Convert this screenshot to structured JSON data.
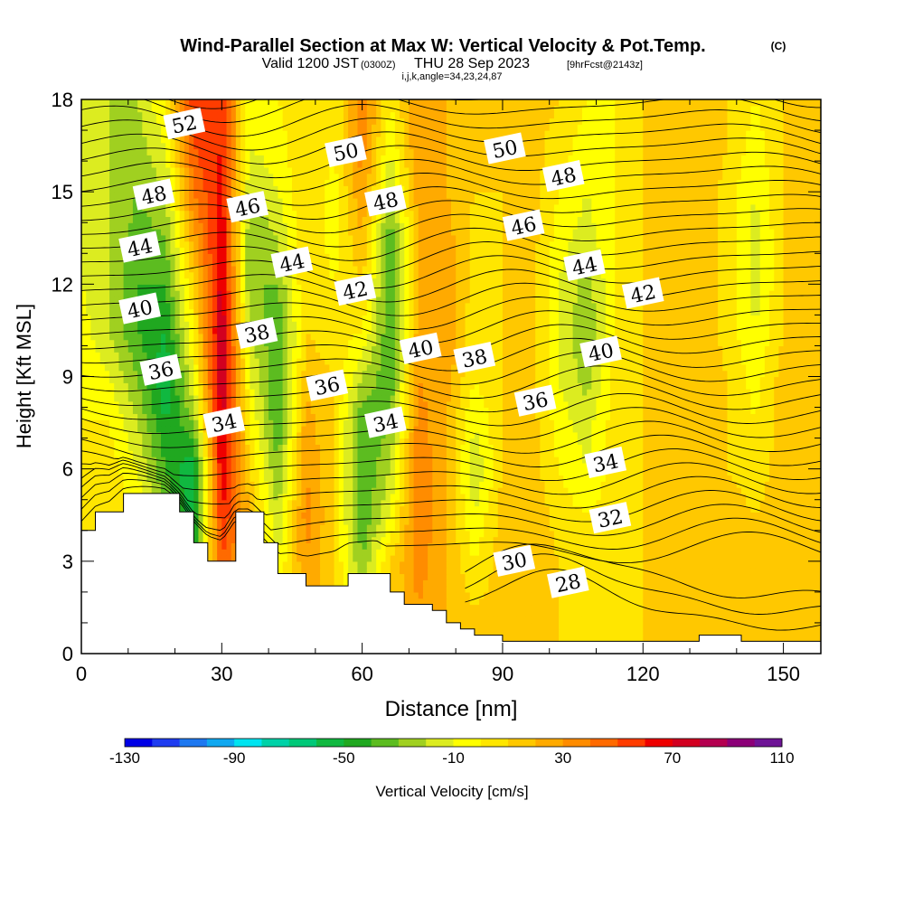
{
  "title": {
    "main": "Wind-Parallel Section at Max W: Vertical Velocity & Pot.Temp.",
    "copyright": "(C)",
    "valid_prefix": "Valid 1200 JST",
    "utc": "(0300Z)",
    "valid_date": "THU 28 Sep 2023",
    "forecast": "[9hrFcst@2143z]",
    "indices": "i,j,k,angle=34,23,24,87"
  },
  "chart_data": {
    "type": "heatmap",
    "xlabel": "Distance [nm]",
    "ylabel": "Height [Kft MSL]",
    "xlim": [
      0,
      158
    ],
    "ylim": [
      0,
      18
    ],
    "x_ticks": [
      0,
      30,
      60,
      90,
      120,
      150
    ],
    "y_ticks": [
      0,
      3,
      6,
      9,
      12,
      15,
      18
    ],
    "colorbar": {
      "label": "Vertical Velocity [cm/s]",
      "min": -130,
      "max": 110,
      "step": 10,
      "tick_labels": [
        "-130",
        "-90",
        "-50",
        "-10",
        "30",
        "70",
        "110"
      ],
      "tick_values": [
        -130,
        -90,
        -50,
        -10,
        30,
        70,
        110
      ],
      "colors": [
        "#0000e6",
        "#1f3cf0",
        "#1e78f0",
        "#10a8f0",
        "#00e4f0",
        "#00d2a8",
        "#00c878",
        "#10b840",
        "#20a820",
        "#5cbc20",
        "#a0d020",
        "#dcec20",
        "#ffff00",
        "#ffe600",
        "#ffc800",
        "#ffaa00",
        "#ff8c00",
        "#ff6a00",
        "#ff3c00",
        "#ee0000",
        "#d20020",
        "#b40050",
        "#8c0078",
        "#6e1496"
      ]
    },
    "vertical_velocity_field": {
      "x": [
        0,
        6,
        12,
        18,
        24,
        30,
        36,
        42,
        48,
        54,
        60,
        66,
        72,
        78,
        84,
        90,
        96,
        102,
        108,
        114,
        120,
        126,
        132,
        138,
        144,
        150,
        158
      ],
      "y": [
        0,
        1.5,
        3,
        4.5,
        6,
        7.5,
        9,
        10.5,
        12,
        13.5,
        15,
        16.5,
        18
      ],
      "values": [
        [
          5,
          10,
          10,
          5,
          10,
          40,
          10,
          0,
          20,
          10,
          0,
          10,
          25,
          20,
          10,
          15,
          20,
          10,
          0,
          5,
          10,
          15,
          20,
          15,
          10,
          15,
          10
        ],
        [
          5,
          10,
          10,
          0,
          -20,
          40,
          20,
          0,
          25,
          10,
          -20,
          10,
          30,
          20,
          10,
          15,
          20,
          10,
          0,
          5,
          10,
          15,
          20,
          15,
          10,
          15,
          10
        ],
        [
          5,
          10,
          5,
          -20,
          -40,
          50,
          20,
          -10,
          30,
          10,
          -30,
          10,
          35,
          20,
          0,
          15,
          20,
          10,
          0,
          5,
          10,
          15,
          20,
          15,
          10,
          15,
          10
        ],
        [
          0,
          10,
          0,
          -30,
          -60,
          60,
          20,
          -20,
          35,
          10,
          -40,
          -10,
          40,
          20,
          -10,
          15,
          20,
          5,
          0,
          5,
          10,
          15,
          20,
          15,
          10,
          15,
          10
        ],
        [
          0,
          5,
          -10,
          -40,
          -60,
          70,
          10,
          -30,
          30,
          10,
          -40,
          -20,
          40,
          20,
          -20,
          10,
          15,
          0,
          -10,
          5,
          10,
          15,
          20,
          10,
          5,
          15,
          10
        ],
        [
          0,
          0,
          -20,
          -50,
          -30,
          75,
          0,
          -40,
          25,
          10,
          -40,
          -30,
          35,
          20,
          -10,
          10,
          15,
          -5,
          -15,
          5,
          10,
          15,
          20,
          10,
          0,
          15,
          10
        ],
        [
          0,
          -10,
          -30,
          -60,
          -10,
          80,
          -10,
          -40,
          15,
          10,
          -20,
          -40,
          30,
          25,
          0,
          10,
          15,
          -10,
          -25,
          5,
          10,
          15,
          20,
          10,
          -5,
          15,
          10
        ],
        [
          -5,
          -20,
          -40,
          -50,
          0,
          80,
          -20,
          -40,
          10,
          5,
          0,
          -40,
          25,
          30,
          0,
          10,
          15,
          -10,
          -30,
          0,
          10,
          15,
          20,
          5,
          -10,
          10,
          10
        ],
        [
          -10,
          -20,
          -40,
          -40,
          10,
          75,
          -30,
          -30,
          10,
          0,
          10,
          -40,
          20,
          30,
          5,
          10,
          15,
          -10,
          -25,
          0,
          10,
          15,
          20,
          5,
          -15,
          10,
          10
        ],
        [
          -10,
          -20,
          -35,
          -30,
          25,
          70,
          -30,
          -20,
          10,
          -5,
          20,
          -40,
          20,
          25,
          5,
          10,
          15,
          -5,
          -15,
          0,
          10,
          15,
          20,
          5,
          -15,
          10,
          10
        ],
        [
          -10,
          -20,
          -30,
          -20,
          40,
          65,
          -20,
          -10,
          10,
          -5,
          30,
          -20,
          25,
          20,
          10,
          10,
          15,
          0,
          -10,
          0,
          10,
          15,
          20,
          5,
          -10,
          10,
          10
        ],
        [
          -10,
          -20,
          -25,
          -10,
          50,
          60,
          -10,
          -5,
          10,
          0,
          35,
          -10,
          30,
          20,
          10,
          10,
          15,
          5,
          -5,
          0,
          10,
          15,
          20,
          10,
          -5,
          10,
          10
        ],
        [
          -10,
          -20,
          -20,
          0,
          55,
          55,
          -5,
          0,
          10,
          0,
          40,
          0,
          30,
          20,
          10,
          10,
          15,
          10,
          0,
          0,
          10,
          15,
          20,
          10,
          0,
          10,
          10
        ]
      ]
    },
    "terrain": {
      "x": [
        0,
        3,
        6,
        9,
        12,
        15,
        18,
        21,
        24,
        27,
        30,
        33,
        36,
        39,
        42,
        45,
        48,
        51,
        54,
        57,
        60,
        63,
        66,
        69,
        72,
        75,
        78,
        81,
        84,
        87,
        90,
        93,
        96,
        99,
        102,
        105,
        108,
        111,
        114,
        117,
        120,
        123,
        126,
        129,
        132,
        135,
        138,
        141,
        144,
        147,
        150,
        153,
        155,
        158
      ],
      "height": [
        4,
        4.6,
        4.6,
        5.2,
        5.2,
        5.2,
        5.2,
        4.6,
        3.6,
        3.0,
        3.0,
        4.6,
        4.6,
        3.6,
        2.6,
        2.6,
        2.2,
        2.2,
        2.2,
        2.6,
        2.6,
        2.6,
        2.0,
        1.6,
        1.6,
        1.4,
        1.0,
        0.8,
        0.6,
        0.6,
        0.4,
        0.4,
        0.4,
        0.4,
        0.4,
        0.4,
        0.4,
        0.4,
        0.4,
        0.4,
        0.4,
        0.4,
        0.4,
        0.4,
        0.6,
        0.6,
        0.6,
        0.4,
        0.4,
        0.4,
        0.4,
        0.4,
        0.4,
        0.4
      ]
    },
    "potential_temperature_contours": {
      "interval": 1,
      "labeled": [
        {
          "value": 52,
          "text": "52",
          "x": 22,
          "y": 17.2
        },
        {
          "value": 48,
          "text": "48",
          "x": 15.5,
          "y": 14.9
        },
        {
          "value": 44,
          "text": "44",
          "x": 12.5,
          "y": 13.2
        },
        {
          "value": 40,
          "text": "40",
          "x": 12.5,
          "y": 11.2
        },
        {
          "value": 36,
          "text": "36",
          "x": 17,
          "y": 9.2
        },
        {
          "value": 46,
          "text": "46",
          "x": 35.5,
          "y": 14.5
        },
        {
          "value": 38,
          "text": "38",
          "x": 37.5,
          "y": 10.4
        },
        {
          "value": 34,
          "text": "34",
          "x": 30.5,
          "y": 7.5
        },
        {
          "value": 50,
          "text": "50",
          "x": 56.5,
          "y": 16.3
        },
        {
          "value": 44,
          "text": "44",
          "x": 45,
          "y": 12.7
        },
        {
          "value": 42,
          "text": "42",
          "x": 58.5,
          "y": 11.8
        },
        {
          "value": 36,
          "text": "36",
          "x": 52.5,
          "y": 8.7
        },
        {
          "value": 48,
          "text": "48",
          "x": 65,
          "y": 14.7
        },
        {
          "value": 40,
          "text": "40",
          "x": 72.5,
          "y": 9.9
        },
        {
          "value": 34,
          "text": "34",
          "x": 65,
          "y": 7.5
        },
        {
          "value": 38,
          "text": "38",
          "x": 84,
          "y": 9.6
        },
        {
          "value": 50,
          "text": "50",
          "x": 90.5,
          "y": 16.4
        },
        {
          "value": 46,
          "text": "46",
          "x": 94.5,
          "y": 13.9
        },
        {
          "value": 36,
          "text": "36",
          "x": 97,
          "y": 8.2
        },
        {
          "value": 30,
          "text": "30",
          "x": 92.5,
          "y": 3.0
        },
        {
          "value": 48,
          "text": "48",
          "x": 103,
          "y": 15.5
        },
        {
          "value": 44,
          "text": "44",
          "x": 107.5,
          "y": 12.6
        },
        {
          "value": 40,
          "text": "40",
          "x": 111,
          "y": 9.8
        },
        {
          "value": 34,
          "text": "34",
          "x": 112,
          "y": 6.2
        },
        {
          "value": 32,
          "text": "32",
          "x": 113,
          "y": 4.4
        },
        {
          "value": 28,
          "text": "28",
          "x": 104,
          "y": 2.3
        },
        {
          "value": 42,
          "text": "42",
          "x": 120,
          "y": 11.7
        }
      ]
    }
  }
}
